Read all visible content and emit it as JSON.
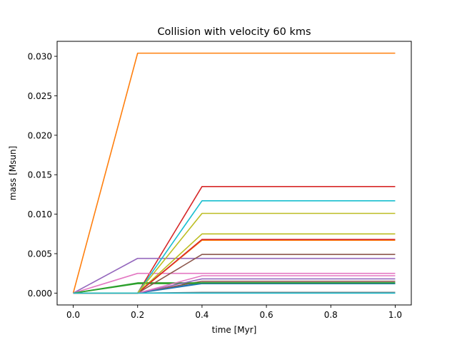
{
  "chart_data": {
    "type": "line",
    "title": "Collision with velocity 60 kms",
    "xlabel": "time [Myr]",
    "ylabel": "mass [Msun]",
    "xlim": [
      -0.05,
      1.05
    ],
    "ylim": [
      -0.0015,
      0.0319
    ],
    "xticks": [
      0.0,
      0.2,
      0.4,
      0.6,
      0.8,
      1.0
    ],
    "xtick_labels": [
      "0.0",
      "0.2",
      "0.4",
      "0.6",
      "0.8",
      "1.0"
    ],
    "yticks": [
      0.0,
      0.005,
      0.01,
      0.015,
      0.02,
      0.025,
      0.03
    ],
    "ytick_labels": [
      "0.000",
      "0.005",
      "0.010",
      "0.015",
      "0.020",
      "0.025",
      "0.030"
    ],
    "grid": false,
    "legend": false,
    "x": [
      0.0,
      0.2,
      0.4,
      1.0
    ],
    "series": [
      {
        "color": "#1f77b4",
        "values": [
          0,
          0,
          0.0013,
          0.0013
        ]
      },
      {
        "color": "#ff7f0e",
        "values": [
          0,
          0.0304,
          0.0304,
          0.0304
        ]
      },
      {
        "color": "#2ca02c",
        "values": [
          0,
          0.0012,
          0.0012,
          0.0012
        ]
      },
      {
        "color": "#d62728",
        "values": [
          0,
          0,
          0.0135,
          0.0135
        ]
      },
      {
        "color": "#9467bd",
        "values": [
          0,
          0.0044,
          0.0044,
          0.0044
        ]
      },
      {
        "color": "#8c564b",
        "values": [
          0,
          0,
          0.0015,
          0.0015
        ]
      },
      {
        "color": "#e377c2",
        "values": [
          0,
          0.0025,
          0.0025,
          0.0025
        ]
      },
      {
        "color": "#7f7f7f",
        "values": [
          0,
          0,
          0.0001,
          0.0001
        ]
      },
      {
        "color": "#bcbd22",
        "values": [
          0,
          0,
          0.0075,
          0.0075
        ]
      },
      {
        "color": "#17becf",
        "values": [
          0,
          0,
          0.0117,
          0.0117
        ]
      },
      {
        "color": "#1f77b4",
        "values": [
          0,
          0,
          0.0012,
          0.0012
        ]
      },
      {
        "color": "#ff7f0e",
        "values": [
          0,
          0,
          0.0067,
          0.0067
        ]
      },
      {
        "color": "#2ca02c",
        "values": [
          0,
          0.0013,
          0.0013,
          0.0013
        ]
      },
      {
        "color": "#d62728",
        "values": [
          0,
          0,
          0.0068,
          0.0068
        ]
      },
      {
        "color": "#9467bd",
        "values": [
          0,
          0,
          0.0018,
          0.0018
        ]
      },
      {
        "color": "#8c564b",
        "values": [
          0,
          0,
          0.0049,
          0.0049
        ]
      },
      {
        "color": "#e377c2",
        "values": [
          0,
          0,
          0.0022,
          0.0022
        ]
      },
      {
        "color": "#7f7f7f",
        "values": [
          0,
          0,
          0.0,
          0.0
        ]
      },
      {
        "color": "#bcbd22",
        "values": [
          0,
          0,
          0.0101,
          0.0101
        ]
      },
      {
        "color": "#17becf",
        "values": [
          0,
          0,
          0.0,
          0.0
        ]
      }
    ]
  }
}
